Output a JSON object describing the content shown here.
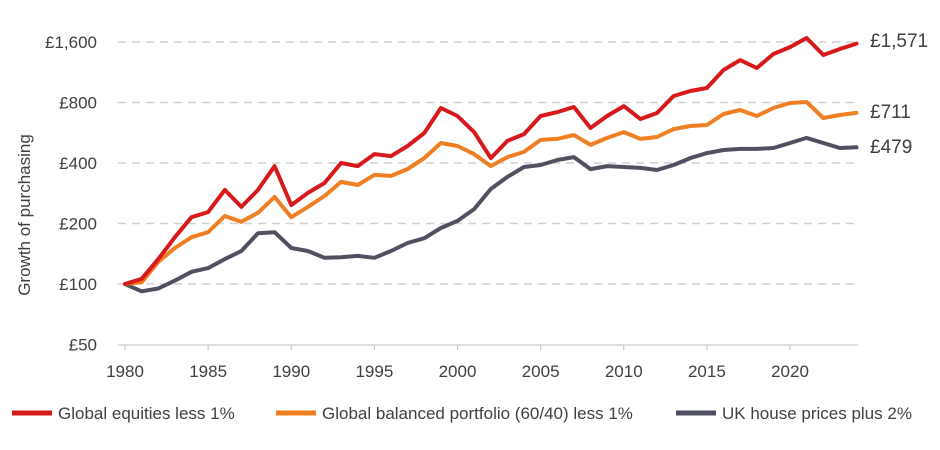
{
  "chart_data": {
    "type": "line",
    "title": "",
    "xlabel": "",
    "ylabel": "Growth of purchasing",
    "yscale": "log2",
    "ylim": [
      50,
      1600
    ],
    "xlim": [
      1980,
      2024
    ],
    "grid": "horizontal dashed",
    "legend_position": "bottom",
    "y_ticks": [
      50,
      100,
      200,
      400,
      800,
      1600
    ],
    "y_tick_labels": [
      "£50",
      "£100",
      "£200",
      "£400",
      "£800",
      "£1,600"
    ],
    "x_ticks": [
      1980,
      1985,
      1990,
      1995,
      2000,
      2005,
      2010,
      2015,
      2020
    ],
    "x_tick_labels": [
      "1980",
      "1985",
      "1990",
      "1995",
      "2000",
      "2005",
      "2010",
      "2015",
      "2020"
    ],
    "x": [
      1980,
      1981,
      1982,
      1983,
      1984,
      1985,
      1986,
      1987,
      1988,
      1989,
      1990,
      1991,
      1992,
      1993,
      1994,
      1995,
      1996,
      1997,
      1998,
      1999,
      2000,
      2001,
      2002,
      2003,
      2004,
      2005,
      2006,
      2007,
      2008,
      2009,
      2010,
      2011,
      2012,
      2013,
      2014,
      2015,
      2016,
      2017,
      2018,
      2019,
      2020,
      2021,
      2022,
      2023,
      2024
    ],
    "series": [
      {
        "name": "Global equities less 1%",
        "color": "#d7191c",
        "end_label": "£1,571",
        "values": [
          100,
          106,
          133,
          171,
          215,
          228,
          294,
          242,
          294,
          386,
          247,
          284,
          318,
          400,
          386,
          443,
          433,
          486,
          564,
          751,
          685,
          570,
          423,
          515,
          557,
          685,
          717,
          760,
          597,
          685,
          768,
          662,
          709,
          862,
          913,
          945,
          1161,
          1300,
          1188,
          1394,
          1510,
          1675,
          1378,
          1476,
          1571
        ]
      },
      {
        "name": "Global balanced portfolio (60/40) less 1%",
        "color": "#f07f23",
        "end_label": "£711",
        "values": [
          100,
          102,
          129,
          151,
          171,
          181,
          218,
          204,
          226,
          271,
          215,
          242,
          274,
          322,
          311,
          349,
          345,
          373,
          423,
          503,
          486,
          443,
          386,
          428,
          454,
          521,
          527,
          551,
          492,
          533,
          570,
          527,
          539,
          590,
          611,
          618,
          701,
          734,
          685,
          751,
          795,
          805,
          670,
          693,
          711
        ]
      },
      {
        "name": "UK house prices plus 2%",
        "color": "#4f5060",
        "end_label": "£479",
        "values": [
          100,
          92,
          95,
          104,
          115,
          120,
          133,
          146,
          179,
          181,
          151,
          146,
          135,
          136,
          138,
          135,
          146,
          160,
          169,
          190,
          206,
          236,
          297,
          341,
          382,
          391,
          414,
          428,
          373,
          386,
          382,
          378,
          369,
          391,
          423,
          448,
          464,
          470,
          470,
          475,
          503,
          533,
          503,
          475,
          479
        ]
      }
    ]
  }
}
